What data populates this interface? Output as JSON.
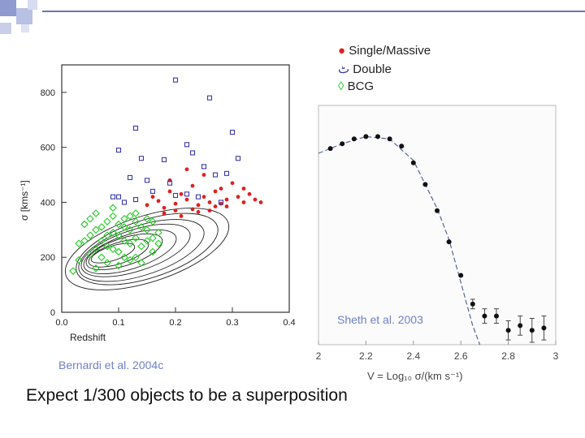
{
  "slide": {
    "legend": [
      {
        "symbol": "●",
        "label": "Single/Massive",
        "color": "#e02020"
      },
      {
        "symbol": "ٹ",
        "label": "Double",
        "color": "#3a3aa8"
      },
      {
        "symbol": "◊",
        "label": "BCG",
        "color": "#22cc22"
      }
    ],
    "credit_left": "Bernardi et al. 2004c",
    "credit_right": "Sheth et al. 2003",
    "caption": "Expect 1/300 objects to be a superposition"
  },
  "chart_data": [
    {
      "type": "scatter",
      "title": "",
      "xlabel": "Redshift",
      "ylabel": "σ [kms⁻¹]",
      "xlim": [
        0.0,
        0.4
      ],
      "ylim": [
        0,
        900
      ],
      "xticks": [
        "0.0",
        "0.1",
        "0.2",
        "0.3",
        "0.4"
      ],
      "yticks": [
        "0",
        "200",
        "400",
        "600",
        "800"
      ],
      "series": [
        {
          "name": "Single/Massive",
          "color": "#e02020",
          "points": [
            [
              0.15,
              390
            ],
            [
              0.16,
              420
            ],
            [
              0.17,
              405
            ],
            [
              0.18,
              380
            ],
            [
              0.19,
              440
            ],
            [
              0.2,
              395
            ],
            [
              0.21,
              430
            ],
            [
              0.22,
              410
            ],
            [
              0.23,
              460
            ],
            [
              0.24,
              390
            ],
            [
              0.25,
              420
            ],
            [
              0.26,
              400
            ],
            [
              0.27,
              440
            ],
            [
              0.28,
              395
            ],
            [
              0.29,
              410
            ],
            [
              0.3,
              470
            ],
            [
              0.31,
              420
            ],
            [
              0.32,
              400
            ],
            [
              0.33,
              430
            ],
            [
              0.34,
              410
            ],
            [
              0.35,
              400
            ],
            [
              0.22,
              520
            ],
            [
              0.25,
              500
            ],
            [
              0.28,
              450
            ],
            [
              0.2,
              370
            ],
            [
              0.24,
              365
            ],
            [
              0.26,
              370
            ],
            [
              0.27,
              385
            ],
            [
              0.18,
              360
            ],
            [
              0.21,
              350
            ],
            [
              0.23,
              375
            ],
            [
              0.19,
              480
            ],
            [
              0.32,
              450
            ],
            [
              0.29,
              385
            ]
          ]
        },
        {
          "name": "Double",
          "color": "#3a3aa8",
          "points": [
            [
              0.2,
              845
            ],
            [
              0.26,
              780
            ],
            [
              0.3,
              655
            ],
            [
              0.13,
              670
            ],
            [
              0.22,
              610
            ],
            [
              0.23,
              580
            ],
            [
              0.1,
              590
            ],
            [
              0.14,
              560
            ],
            [
              0.18,
              555
            ],
            [
              0.25,
              530
            ],
            [
              0.27,
              500
            ],
            [
              0.29,
              505
            ],
            [
              0.31,
              560
            ],
            [
              0.12,
              490
            ],
            [
              0.15,
              480
            ],
            [
              0.19,
              470
            ],
            [
              0.22,
              430
            ],
            [
              0.2,
              425
            ],
            [
              0.16,
              440
            ],
            [
              0.1,
              420
            ],
            [
              0.13,
              410
            ],
            [
              0.24,
              420
            ],
            [
              0.28,
              400
            ],
            [
              0.11,
              400
            ],
            [
              0.09,
              420
            ]
          ]
        },
        {
          "name": "BCG",
          "color": "#22cc22",
          "points": [
            [
              0.04,
              320
            ],
            [
              0.05,
              280
            ],
            [
              0.06,
              300
            ],
            [
              0.07,
              260
            ],
            [
              0.08,
              240
            ],
            [
              0.09,
              290
            ],
            [
              0.1,
              220
            ],
            [
              0.11,
              310
            ],
            [
              0.12,
              250
            ],
            [
              0.13,
              200
            ],
            [
              0.06,
              230
            ],
            [
              0.07,
              200
            ],
            [
              0.08,
              330
            ],
            [
              0.09,
              350
            ],
            [
              0.1,
              280
            ],
            [
              0.11,
              260
            ],
            [
              0.12,
              300
            ],
            [
              0.13,
              270
            ],
            [
              0.14,
              240
            ],
            [
              0.15,
              260
            ],
            [
              0.16,
              330
            ],
            [
              0.17,
              290
            ],
            [
              0.05,
              340
            ],
            [
              0.03,
              250
            ],
            [
              0.03,
              190
            ],
            [
              0.02,
              150
            ],
            [
              0.06,
              160
            ],
            [
              0.08,
              180
            ],
            [
              0.1,
              170
            ],
            [
              0.12,
              190
            ],
            [
              0.14,
              310
            ],
            [
              0.15,
              300
            ],
            [
              0.16,
              270
            ],
            [
              0.17,
              250
            ],
            [
              0.07,
              310
            ],
            [
              0.09,
              230
            ],
            [
              0.11,
              200
            ],
            [
              0.13,
              330
            ],
            [
              0.05,
              210
            ],
            [
              0.04,
              260
            ],
            [
              0.16,
              220
            ],
            [
              0.14,
              180
            ],
            [
              0.08,
              280
            ],
            [
              0.1,
              320
            ],
            [
              0.12,
              350
            ],
            [
              0.11,
              340
            ],
            [
              0.09,
              380
            ],
            [
              0.06,
              360
            ],
            [
              0.13,
              360
            ],
            [
              0.15,
              340
            ]
          ]
        }
      ]
    },
    {
      "type": "scatter",
      "title": "",
      "xlabel": "V = Log₁₀ σ/(km s⁻¹)",
      "ylabel": "",
      "xlim": [
        2.0,
        3.0
      ],
      "ylim": [
        0,
        1
      ],
      "xticks": [
        "2",
        "2.2",
        "2.4",
        "2.6",
        "2.8",
        "3"
      ],
      "series": [
        {
          "name": "data",
          "color": "#111111",
          "points": [
            [
              2.05,
              0.82
            ],
            [
              2.1,
              0.84
            ],
            [
              2.15,
              0.86
            ],
            [
              2.2,
              0.87
            ],
            [
              2.25,
              0.87
            ],
            [
              2.3,
              0.86
            ],
            [
              2.35,
              0.83
            ],
            [
              2.4,
              0.76
            ],
            [
              2.45,
              0.67
            ],
            [
              2.5,
              0.56
            ],
            [
              2.55,
              0.43
            ],
            [
              2.6,
              0.29
            ],
            [
              2.65,
              0.17
            ],
            [
              2.7,
              0.12
            ],
            [
              2.75,
              0.12
            ],
            [
              2.8,
              0.06
            ],
            [
              2.85,
              0.08
            ],
            [
              2.9,
              0.06
            ],
            [
              2.95,
              0.07
            ]
          ],
          "error_bars": [
            0,
            0,
            0,
            0,
            0,
            0,
            0,
            0,
            0,
            0,
            0,
            0,
            0.02,
            0.03,
            0.03,
            0.04,
            0.04,
            0.05,
            0.05
          ]
        },
        {
          "name": "fit",
          "color": "#556699",
          "points": [
            [
              2.0,
              0.8
            ],
            [
              2.1,
              0.84
            ],
            [
              2.2,
              0.87
            ],
            [
              2.3,
              0.86
            ],
            [
              2.4,
              0.77
            ],
            [
              2.5,
              0.57
            ],
            [
              2.55,
              0.44
            ],
            [
              2.6,
              0.26
            ],
            [
              2.65,
              0.08
            ],
            [
              2.68,
              0.0
            ]
          ]
        }
      ]
    }
  ]
}
